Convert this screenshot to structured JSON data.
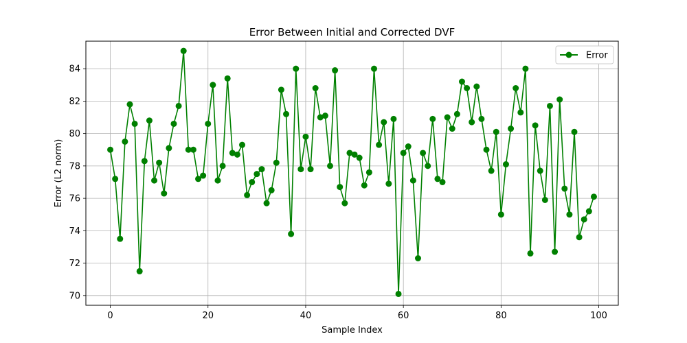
{
  "chart_data": {
    "type": "line",
    "title": "Error Between Initial and Corrected DVF",
    "xlabel": "Sample Index",
    "ylabel": "Error (L2 norm)",
    "xlim": [
      -5,
      104
    ],
    "ylim": [
      69.4,
      85.7
    ],
    "xticks": [
      0,
      20,
      40,
      60,
      80,
      100
    ],
    "yticks": [
      70,
      72,
      74,
      76,
      78,
      80,
      82,
      84
    ],
    "grid": true,
    "legend_position": "top-right",
    "series": [
      {
        "name": "Error",
        "color": "#008000",
        "marker": "circle",
        "x": [
          0,
          1,
          2,
          3,
          4,
          5,
          6,
          7,
          8,
          9,
          10,
          11,
          12,
          13,
          14,
          15,
          16,
          17,
          18,
          19,
          20,
          21,
          22,
          23,
          24,
          25,
          26,
          27,
          28,
          29,
          30,
          31,
          32,
          33,
          34,
          35,
          36,
          37,
          38,
          39,
          40,
          41,
          42,
          43,
          44,
          45,
          46,
          47,
          48,
          49,
          50,
          51,
          52,
          53,
          54,
          55,
          56,
          57,
          58,
          59,
          60,
          61,
          62,
          63,
          64,
          65,
          66,
          67,
          68,
          69,
          70,
          71,
          72,
          73,
          74,
          75,
          76,
          77,
          78,
          79,
          80,
          81,
          82,
          83,
          84,
          85,
          86,
          87,
          88,
          89,
          90,
          91,
          92,
          93,
          94,
          95,
          96,
          97,
          98,
          99
        ],
        "values": [
          79.0,
          77.2,
          73.5,
          79.5,
          81.8,
          80.6,
          71.5,
          78.3,
          80.8,
          77.1,
          78.2,
          76.3,
          79.1,
          80.6,
          81.7,
          85.1,
          79.0,
          79.0,
          77.2,
          77.4,
          80.6,
          83.0,
          77.1,
          78.0,
          83.4,
          78.8,
          78.7,
          79.3,
          76.2,
          77.0,
          77.5,
          77.8,
          75.7,
          76.5,
          78.2,
          82.7,
          81.2,
          73.8,
          84.0,
          77.8,
          79.8,
          77.8,
          82.8,
          81.0,
          81.1,
          78.0,
          83.9,
          76.7,
          75.7,
          78.8,
          78.7,
          78.5,
          76.8,
          77.6,
          84.0,
          79.3,
          80.7,
          76.9,
          80.9,
          70.1,
          78.8,
          79.2,
          77.1,
          72.3,
          78.8,
          78.0,
          80.9,
          77.2,
          77.0,
          81.0,
          80.3,
          81.2,
          83.2,
          82.8,
          80.7,
          82.9,
          80.9,
          79.0,
          77.7,
          80.1,
          75.0,
          78.1,
          80.3,
          82.8,
          81.3,
          84.0,
          72.6,
          80.5,
          77.7,
          75.9,
          81.7,
          72.7,
          82.1,
          76.6,
          75.0,
          80.1,
          73.6,
          74.7,
          75.2,
          76.1
        ]
      }
    ]
  }
}
